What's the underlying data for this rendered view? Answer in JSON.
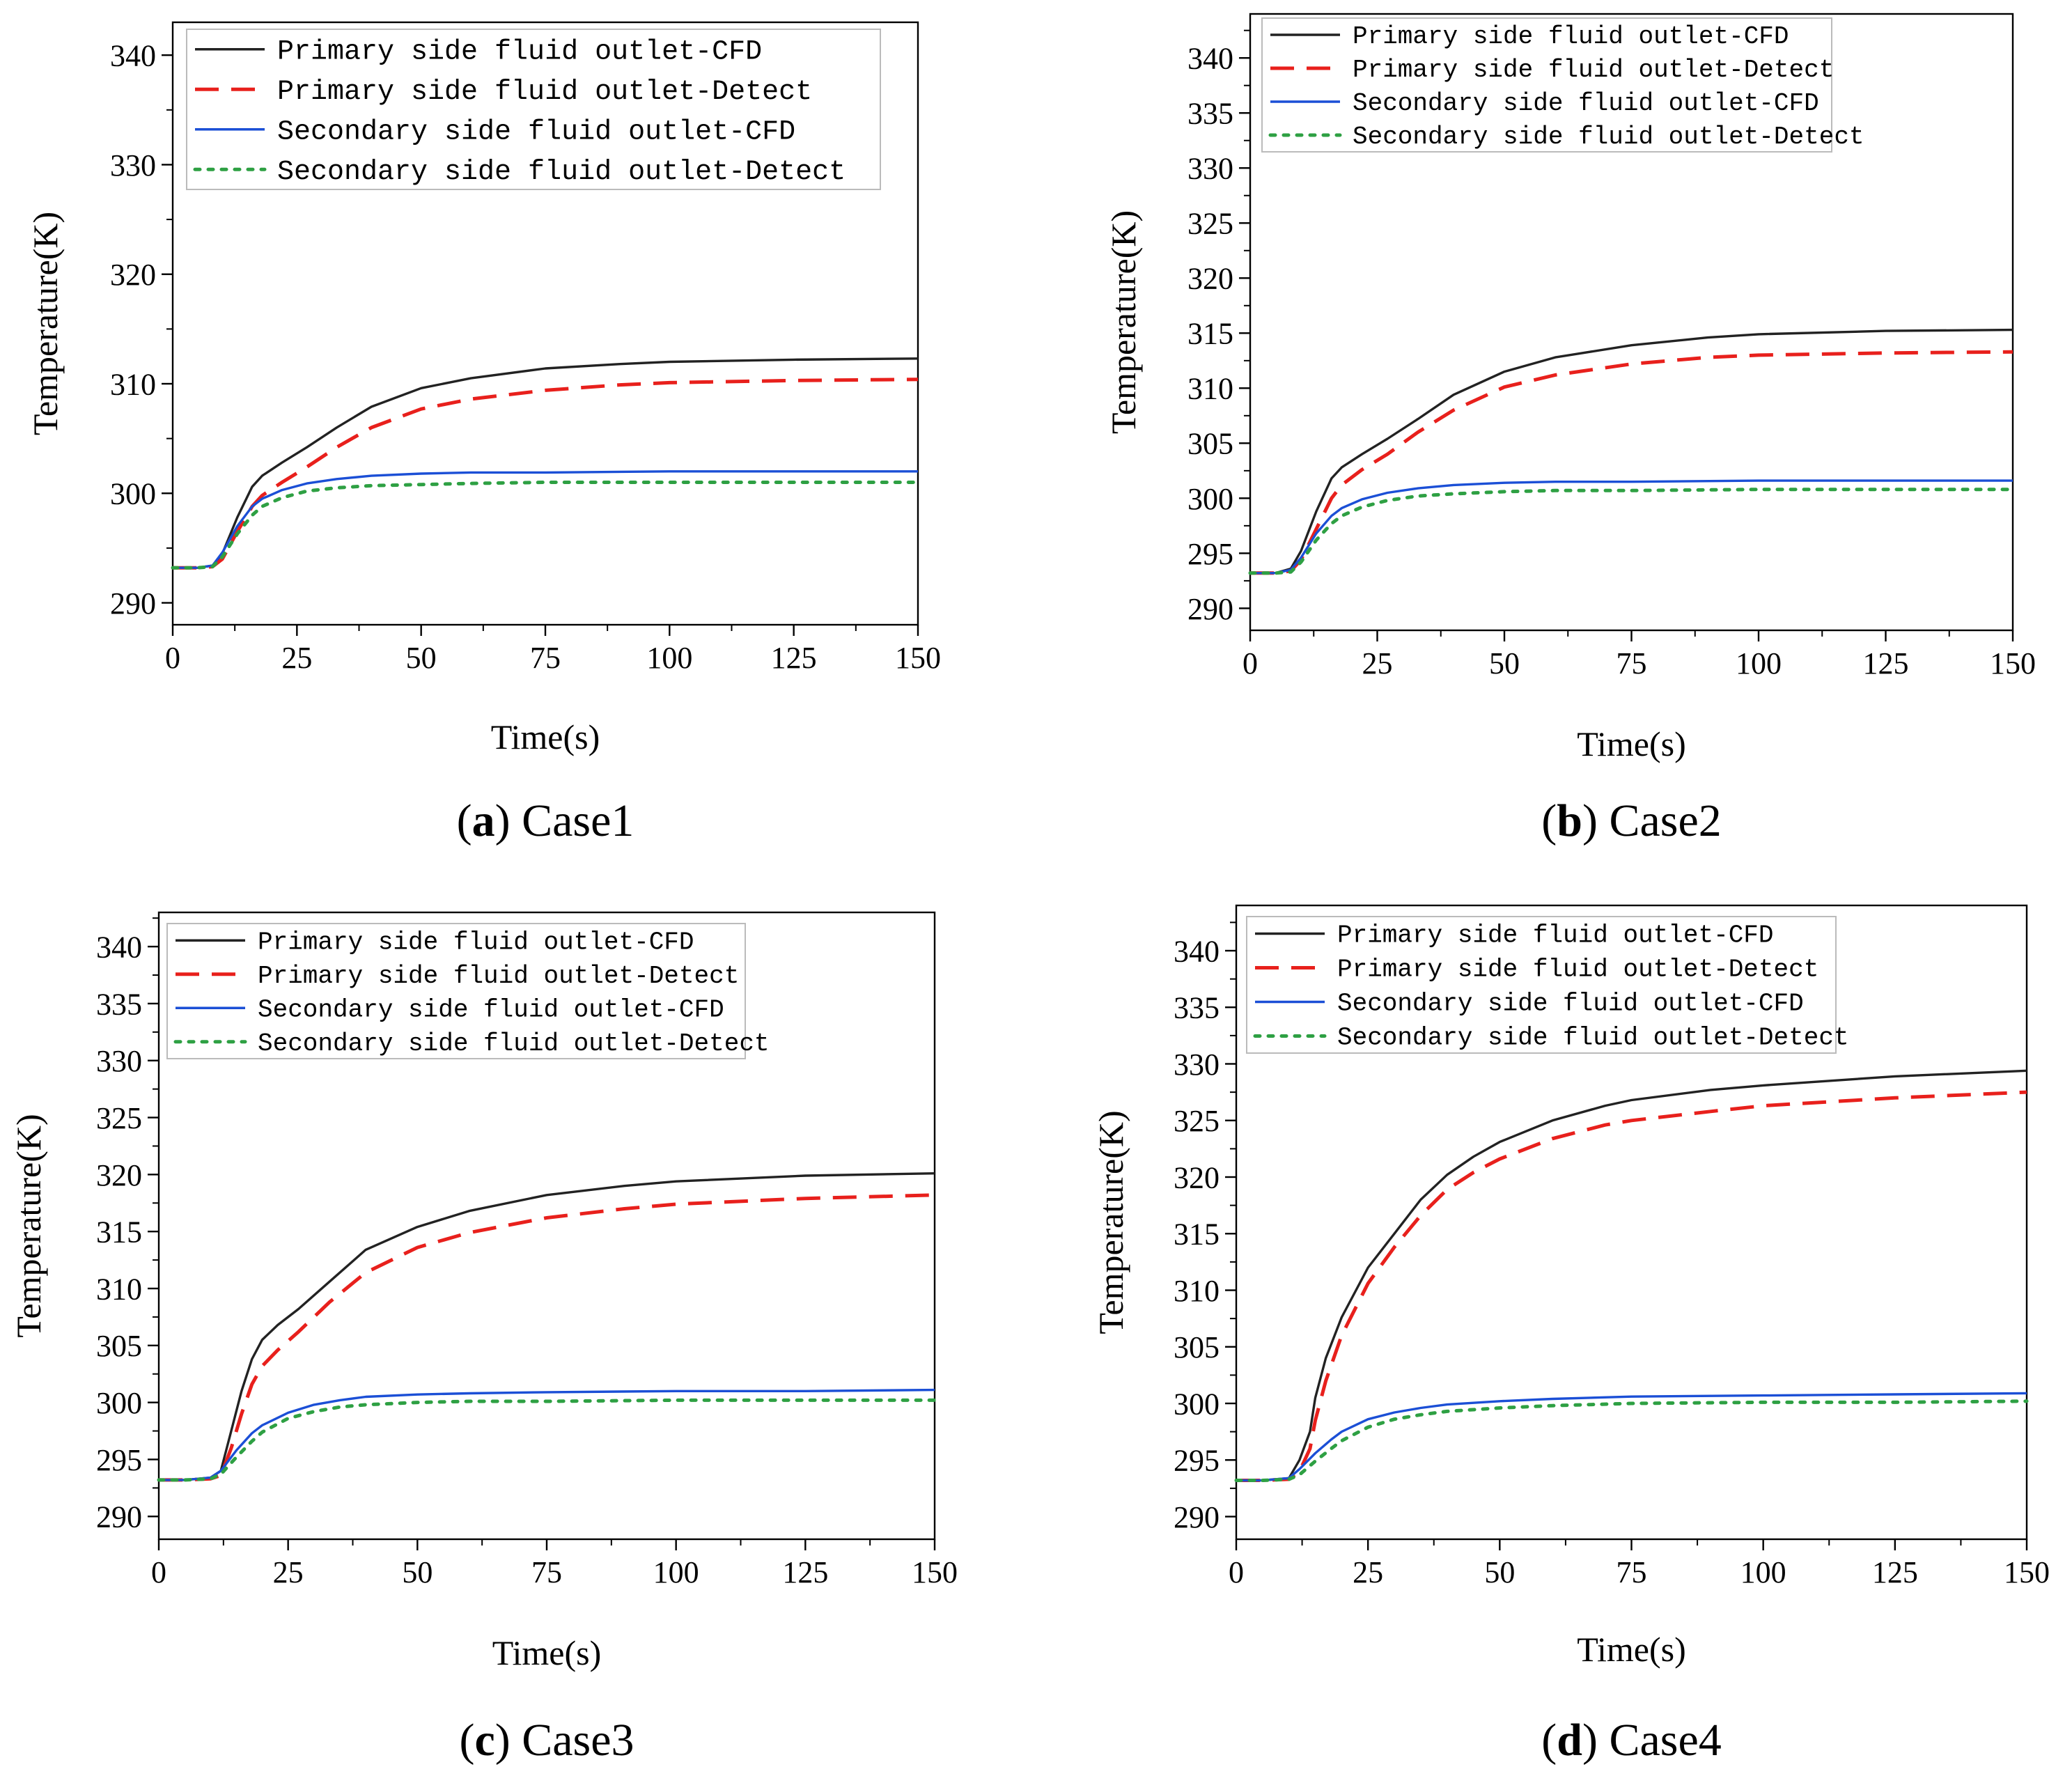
{
  "figure": {
    "x_tick_labels": [
      "0",
      "25",
      "50",
      "75",
      "100",
      "125",
      "150"
    ],
    "legend": [
      {
        "label": "Primary side fluid outlet-CFD",
        "color": "#222222",
        "style": "solid"
      },
      {
        "label": "Primary side fluid outlet-Detect",
        "color": "#e8201c",
        "style": "dashed"
      },
      {
        "label": "Secondary side fluid outlet-CFD",
        "color": "#1b4fd6",
        "style": "solid"
      },
      {
        "label": "Secondary side fluid outlet-Detect",
        "color": "#2ea043",
        "style": "dotted"
      }
    ]
  },
  "chart_data": [
    {
      "type": "line",
      "caption_letter": "a",
      "caption_text": " Case1",
      "xlabel": "Time(s)",
      "ylabel": "Temperature(K)",
      "xlim": [
        0,
        150
      ],
      "ylim": [
        288,
        343
      ],
      "y_ticks": [
        290,
        300,
        310,
        320,
        330,
        340
      ],
      "legend_position": "top-left",
      "series": [
        {
          "name": "Primary side fluid outlet-CFD",
          "x": [
            0,
            5,
            8,
            10,
            13,
            16,
            18,
            22,
            27,
            33,
            40,
            50,
            60,
            75,
            90,
            100,
            125,
            150
          ],
          "y": [
            293.2,
            293.2,
            293.4,
            294.5,
            297.8,
            300.6,
            301.6,
            302.8,
            304.2,
            306,
            307.9,
            309.6,
            310.5,
            311.4,
            311.8,
            312,
            312.2,
            312.3
          ]
        },
        {
          "name": "Primary side fluid outlet-Detect",
          "x": [
            0,
            5,
            8,
            10,
            13,
            16,
            18,
            22,
            27,
            33,
            40,
            50,
            60,
            75,
            90,
            100,
            125,
            150
          ],
          "y": [
            293.2,
            293.2,
            293.3,
            294,
            296.5,
            298.8,
            299.8,
            301,
            302.4,
            304.2,
            306,
            307.7,
            308.6,
            309.4,
            309.9,
            310.1,
            310.3,
            310.4
          ]
        },
        {
          "name": "Secondary side fluid outlet-CFD",
          "x": [
            0,
            5,
            8,
            10,
            13,
            16,
            18,
            22,
            27,
            33,
            40,
            50,
            60,
            75,
            100,
            125,
            150
          ],
          "y": [
            293.2,
            293.2,
            293.4,
            294.6,
            297,
            298.8,
            299.5,
            300.3,
            300.9,
            301.3,
            301.6,
            301.8,
            301.9,
            301.9,
            302,
            302,
            302
          ]
        },
        {
          "name": "Secondary side fluid outlet-Detect",
          "x": [
            0,
            5,
            8,
            10,
            13,
            16,
            18,
            22,
            27,
            33,
            40,
            50,
            60,
            75,
            100,
            125,
            150
          ],
          "y": [
            293.2,
            293.2,
            293.3,
            294.2,
            296.3,
            298,
            298.8,
            299.6,
            300.2,
            300.5,
            300.7,
            300.8,
            300.9,
            301,
            301,
            301,
            301
          ]
        }
      ]
    },
    {
      "type": "line",
      "caption_letter": "b",
      "caption_text": " Case2",
      "xlabel": "Time(s)",
      "ylabel": "Temperature(K)",
      "xlim": [
        0,
        150
      ],
      "ylim": [
        288,
        344
      ],
      "y_ticks": [
        290,
        295,
        300,
        305,
        310,
        315,
        320,
        325,
        330,
        335,
        340
      ],
      "legend_position": "top-left",
      "series": [
        {
          "name": "Primary side fluid outlet-CFD",
          "x": [
            0,
            5,
            8,
            10,
            13,
            16,
            18,
            22,
            27,
            33,
            40,
            50,
            60,
            75,
            90,
            100,
            125,
            150
          ],
          "y": [
            293.2,
            293.2,
            293.6,
            295.2,
            298.8,
            301.8,
            302.8,
            304,
            305.4,
            307.2,
            309.4,
            311.5,
            312.8,
            313.9,
            314.6,
            314.9,
            315.2,
            315.3
          ]
        },
        {
          "name": "Primary side fluid outlet-Detect",
          "x": [
            0,
            5,
            8,
            10,
            13,
            16,
            18,
            22,
            27,
            33,
            40,
            50,
            60,
            75,
            90,
            100,
            125,
            150
          ],
          "y": [
            293.2,
            293.2,
            293.4,
            294.4,
            297.2,
            300,
            301.2,
            302.6,
            304,
            306,
            308,
            310.1,
            311.2,
            312.2,
            312.8,
            313,
            313.2,
            313.3
          ]
        },
        {
          "name": "Secondary side fluid outlet-CFD",
          "x": [
            0,
            5,
            8,
            10,
            13,
            16,
            18,
            22,
            27,
            33,
            40,
            50,
            60,
            75,
            100,
            125,
            150
          ],
          "y": [
            293.2,
            293.2,
            293.5,
            294.6,
            296.8,
            298.4,
            299.1,
            299.9,
            300.5,
            300.9,
            301.2,
            301.4,
            301.5,
            301.5,
            301.6,
            301.6,
            301.6
          ]
        },
        {
          "name": "Secondary side fluid outlet-Detect",
          "x": [
            0,
            5,
            8,
            10,
            13,
            16,
            18,
            22,
            27,
            33,
            40,
            50,
            60,
            75,
            100,
            125,
            150
          ],
          "y": [
            293.2,
            293.2,
            293.3,
            294.2,
            296.2,
            297.7,
            298.4,
            299.2,
            299.8,
            300.2,
            300.4,
            300.6,
            300.7,
            300.7,
            300.8,
            300.8,
            300.8
          ]
        }
      ]
    },
    {
      "type": "line",
      "caption_letter": "c",
      "caption_text": " Case3",
      "xlabel": "Time(s)",
      "ylabel": "Temperature(K)",
      "xlim": [
        0,
        150
      ],
      "ylim": [
        288,
        343
      ],
      "y_ticks": [
        290,
        295,
        300,
        305,
        310,
        315,
        320,
        325,
        330,
        335,
        340
      ],
      "legend_position": "top-left",
      "series": [
        {
          "name": "Primary side fluid outlet-CFD",
          "x": [
            0,
            5,
            10,
            12,
            14,
            16,
            18,
            20,
            23,
            27,
            33,
            40,
            50,
            60,
            75,
            90,
            100,
            125,
            150
          ],
          "y": [
            293.2,
            293.2,
            293.4,
            294,
            297.5,
            301,
            303.8,
            305.5,
            306.8,
            308.2,
            310.6,
            313.4,
            315.4,
            316.8,
            318.2,
            319,
            319.4,
            319.9,
            320.1
          ]
        },
        {
          "name": "Primary side fluid outlet-Detect",
          "x": [
            0,
            5,
            10,
            12,
            14,
            16,
            18,
            20,
            23,
            27,
            33,
            40,
            50,
            60,
            75,
            90,
            100,
            125,
            150
          ],
          "y": [
            293.2,
            293.2,
            293.3,
            293.6,
            296,
            299,
            301.6,
            303.2,
            304.6,
            306.2,
            308.8,
            311.4,
            313.6,
            314.9,
            316.2,
            317,
            317.4,
            317.9,
            318.2
          ]
        },
        {
          "name": "Secondary side fluid outlet-CFD",
          "x": [
            0,
            5,
            10,
            12,
            15,
            18,
            20,
            25,
            30,
            35,
            40,
            50,
            60,
            75,
            100,
            125,
            150
          ],
          "y": [
            293.2,
            293.2,
            293.4,
            294,
            295.8,
            297.3,
            298,
            299.1,
            299.8,
            300.2,
            300.5,
            300.7,
            300.8,
            300.9,
            301,
            301,
            301.1
          ]
        },
        {
          "name": "Secondary side fluid outlet-Detect",
          "x": [
            0,
            5,
            10,
            12,
            15,
            18,
            20,
            25,
            30,
            35,
            40,
            50,
            60,
            75,
            100,
            125,
            150
          ],
          "y": [
            293.2,
            293.2,
            293.3,
            293.7,
            295.2,
            296.6,
            297.4,
            298.6,
            299.2,
            299.6,
            299.8,
            300,
            300.1,
            300.1,
            300.2,
            300.2,
            300.2
          ]
        }
      ]
    },
    {
      "type": "line",
      "caption_letter": "d",
      "caption_text": " Case4",
      "xlabel": "Time(s)",
      "ylabel": "Temperature(K)",
      "xlim": [
        0,
        150
      ],
      "ylim": [
        288,
        344
      ],
      "y_ticks": [
        290,
        295,
        300,
        305,
        310,
        315,
        320,
        325,
        330,
        335,
        340
      ],
      "legend_position": "top-left",
      "series": [
        {
          "name": "Primary side fluid outlet-CFD",
          "x": [
            0,
            5,
            10,
            12,
            14,
            15,
            17,
            20,
            25,
            30,
            35,
            40,
            45,
            50,
            60,
            70,
            75,
            90,
            100,
            125,
            150
          ],
          "y": [
            293.2,
            293.2,
            293.4,
            295,
            297.5,
            300.5,
            304,
            307.6,
            312,
            315,
            318,
            320.2,
            321.8,
            323.1,
            325,
            326.3,
            326.8,
            327.7,
            328.1,
            328.9,
            329.4
          ]
        },
        {
          "name": "Primary side fluid outlet-Detect",
          "x": [
            0,
            5,
            10,
            12,
            14,
            15,
            17,
            20,
            25,
            30,
            35,
            40,
            45,
            50,
            60,
            70,
            75,
            90,
            100,
            125,
            150
          ],
          "y": [
            293.2,
            293.2,
            293.3,
            294,
            296,
            298.5,
            302,
            306,
            310.6,
            313.8,
            316.6,
            318.9,
            320.4,
            321.6,
            323.4,
            324.6,
            325,
            325.8,
            326.3,
            327,
            327.5
          ]
        },
        {
          "name": "Secondary side fluid outlet-CFD",
          "x": [
            0,
            5,
            10,
            12,
            15,
            18,
            20,
            25,
            30,
            35,
            40,
            50,
            60,
            75,
            100,
            125,
            150
          ],
          "y": [
            293.2,
            293.2,
            293.4,
            294.2,
            295.6,
            296.8,
            297.5,
            298.6,
            299.2,
            299.6,
            299.9,
            300.2,
            300.4,
            300.6,
            300.7,
            300.8,
            300.9
          ]
        },
        {
          "name": "Secondary side fluid outlet-Detect",
          "x": [
            0,
            5,
            10,
            12,
            15,
            18,
            20,
            25,
            30,
            35,
            40,
            50,
            60,
            75,
            100,
            125,
            150
          ],
          "y": [
            293.2,
            293.2,
            293.3,
            293.7,
            294.9,
            296,
            296.7,
            297.9,
            298.6,
            299,
            299.3,
            299.6,
            299.8,
            300,
            300.1,
            300.1,
            300.2
          ]
        }
      ]
    }
  ]
}
